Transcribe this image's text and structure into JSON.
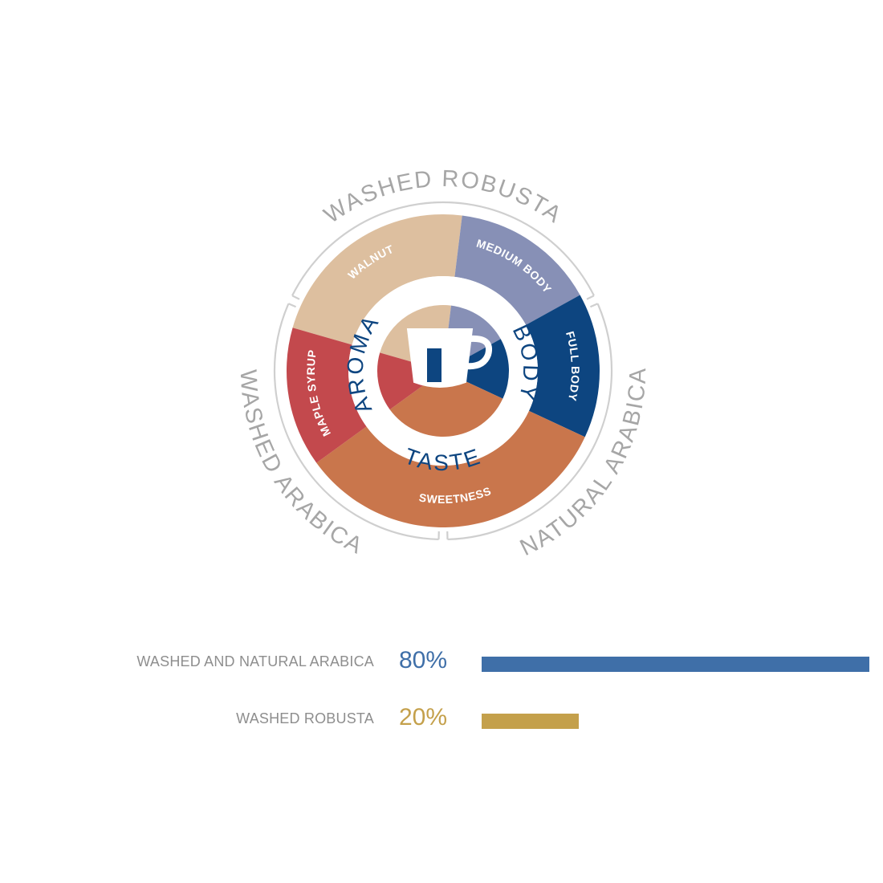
{
  "chart_data": [
    {
      "type": "pie",
      "title": "",
      "outer_labels": [
        {
          "label": "WASHED ROBUSTA",
          "start_deg": 295,
          "end_deg": 65
        },
        {
          "label": "NATURAL ARABICA",
          "start_deg": 65,
          "end_deg": 180
        },
        {
          "label": "WASHED ARABICA",
          "start_deg": 180,
          "end_deg": 295
        }
      ],
      "segments": [
        {
          "label": "WALNUT",
          "start_deg": 286,
          "end_deg": 7,
          "color": "#ddbf9f"
        },
        {
          "label": "MEDIUM BODY",
          "start_deg": 7,
          "end_deg": 61,
          "color": "#8790b6"
        },
        {
          "label": "FULL BODY",
          "start_deg": 61,
          "end_deg": 115,
          "color": "#0d4580"
        },
        {
          "label": "SWEETNESS",
          "start_deg": 115,
          "end_deg": 234,
          "color": "#c9764c"
        },
        {
          "label": "MAPLE SYRUP",
          "start_deg": 234,
          "end_deg": 286,
          "color": "#c3494d"
        }
      ],
      "center_labels": [
        "AROMA",
        "BODY",
        "TASTE"
      ],
      "center_icon": "coffee-cup-icon"
    },
    {
      "type": "bar",
      "orientation": "horizontal",
      "categories": [
        "WASHED AND NATURAL ARABICA",
        "WASHED ROBUSTA"
      ],
      "values": [
        80,
        20
      ],
      "value_labels": [
        "80%",
        "20%"
      ],
      "colors": [
        "#3f6fa8",
        "#c4a04b"
      ],
      "xlim": [
        0,
        80
      ]
    }
  ],
  "colors": {
    "label_gray": "#8e8e8e",
    "ring_gray": "#cfcfcf",
    "center_blue": "#0d4580"
  }
}
